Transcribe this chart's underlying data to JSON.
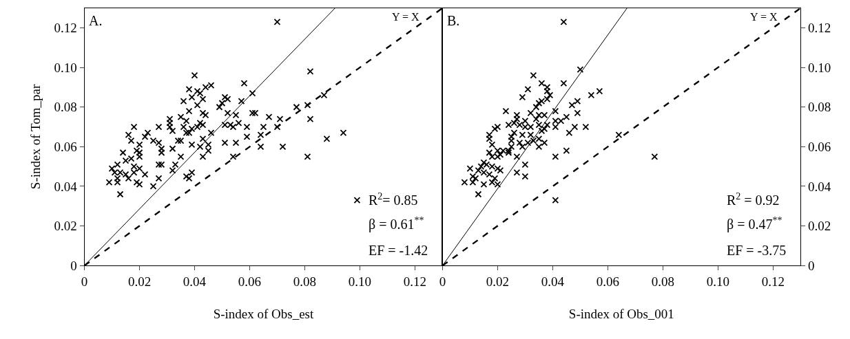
{
  "chart_data": [
    {
      "type": "scatter",
      "xlabel": "S-index of Obs_est",
      "ylabel": "S-index of Tom_par",
      "annotations": [
        "A.",
        "Y = X",
        "R$^{2}$= 0.85",
        "β = 0.61$^{**}$",
        "EF = -1.42"
      ],
      "xlim": [
        0,
        0.13
      ],
      "ylim": [
        0,
        0.13
      ],
      "xticks": [
        0,
        0.02,
        0.04,
        0.06,
        0.08,
        {
          "value": 0.1,
          "label": "0.10"
        },
        0.12
      ],
      "yticks": [
        0,
        0.02,
        0.04,
        0.06,
        0.08,
        {
          "value": 0.1,
          "label": "0.10"
        },
        0.12
      ],
      "grid": false,
      "series": [
        {
          "color": "#000000",
          "marker": "cross",
          "x": [
            0.04,
            0.046,
            0.044,
            0.038,
            0.041,
            0.042,
            0.039,
            0.043,
            0.036,
            0.041,
            0.038,
            0.043,
            0.044,
            0.035,
            0.037,
            0.031,
            0.031,
            0.031,
            0.032,
            0.027,
            0.018,
            0.016,
            0.017,
            0.023,
            0.022,
            0.025,
            0.02,
            0.019,
            0.02,
            0.02,
            0.017,
            0.015,
            0.014,
            0.012,
            0.01,
            0.011,
            0.013,
            0.015,
            0.018,
            0.02,
            0.018,
            0.022,
            0.027,
            0.025,
            0.019,
            0.02,
            0.016,
            0.012,
            0.012,
            0.009,
            0.013,
            0.027,
            0.028,
            0.028,
            0.032,
            0.034,
            0.035,
            0.027,
            0.028,
            0.033,
            0.032,
            0.035,
            0.037,
            0.039,
            0.038,
            0.039,
            0.042,
            0.043,
            0.045,
            0.045,
            0.043,
            0.046,
            0.036,
            0.037,
            0.039,
            0.038,
            0.042,
            0.043,
            0.041,
            0.05,
            0.051,
            0.052,
            0.049,
            0.052,
            0.055,
            0.057,
            0.058,
            0.061,
            0.051,
            0.053,
            0.054,
            0.056,
            0.059,
            0.059,
            0.051,
            0.055,
            0.054,
            0.061,
            0.082,
            0.062,
            0.067,
            0.065,
            0.064,
            0.064,
            0.071,
            0.07,
            0.072,
            0.077,
            0.081,
            0.082,
            0.087,
            0.088,
            0.094,
            0.081,
            0.099,
            0.07
          ],
          "values": [
            0.096,
            0.091,
            0.09,
            0.089,
            0.088,
            0.087,
            0.085,
            0.084,
            0.083,
            0.081,
            0.078,
            0.077,
            0.076,
            0.075,
            0.073,
            0.074,
            0.072,
            0.07,
            0.068,
            0.07,
            0.07,
            0.066,
            0.063,
            0.067,
            0.065,
            0.063,
            0.061,
            0.058,
            0.057,
            0.055,
            0.054,
            0.053,
            0.057,
            0.051,
            0.049,
            0.047,
            0.047,
            0.046,
            0.05,
            0.049,
            0.047,
            0.046,
            0.044,
            0.04,
            0.042,
            0.041,
            0.044,
            0.044,
            0.042,
            0.042,
            0.036,
            0.062,
            0.059,
            0.057,
            0.059,
            0.063,
            0.063,
            0.051,
            0.051,
            0.051,
            0.048,
            0.055,
            0.045,
            0.047,
            0.044,
            0.061,
            0.06,
            0.064,
            0.061,
            0.058,
            0.055,
            0.067,
            0.07,
            0.067,
            0.069,
            0.067,
            0.072,
            0.071,
            0.07,
            0.082,
            0.085,
            0.084,
            0.08,
            0.077,
            0.076,
            0.083,
            0.092,
            0.087,
            0.071,
            0.071,
            0.07,
            0.072,
            0.07,
            0.065,
            0.062,
            0.062,
            0.055,
            0.077,
            0.098,
            0.077,
            0.075,
            0.07,
            0.066,
            0.06,
            0.074,
            0.07,
            0.06,
            0.08,
            0.081,
            0.074,
            0.086,
            0.064,
            0.067,
            0.055,
            0.033,
            0.123
          ]
        },
        {
          "type": "line",
          "color": "#000000",
          "line_style": "solid",
          "x": [
            0,
            0.091
          ],
          "values": [
            0,
            0.13
          ]
        },
        {
          "type": "line",
          "color": "#000000",
          "line_style": "dashed",
          "x": [
            0,
            0.13
          ],
          "values": [
            0,
            0.13
          ]
        }
      ]
    },
    {
      "type": "scatter",
      "xlabel": "S-index of Obs_001",
      "annotations": [
        "B.",
        "Y = X",
        "R$^{2}$ = 0.92",
        "β = 0.47$^{**}$",
        "EF = -3.75"
      ],
      "xlim": [
        0,
        0.13
      ],
      "ylim": [
        0,
        0.13
      ],
      "xticks": [
        0,
        0.02,
        0.04,
        0.06,
        0.08,
        {
          "value": 0.1,
          "label": "0.10"
        },
        0.12
      ],
      "yticks": [
        0,
        0.02,
        0.04,
        0.06,
        0.08,
        {
          "value": 0.1,
          "label": "0.10"
        },
        0.12
      ],
      "grid": false,
      "series": [
        {
          "color": "#000000",
          "marker": "cross",
          "x": [
            0.033,
            0.036,
            0.038,
            0.031,
            0.029,
            0.038,
            0.039,
            0.038,
            0.036,
            0.035,
            0.034,
            0.023,
            0.027,
            0.032,
            0.035,
            0.037,
            0.041,
            0.027,
            0.03,
            0.034,
            0.026,
            0.028,
            0.024,
            0.02,
            0.019,
            0.03,
            0.032,
            0.035,
            0.038,
            0.037,
            0.041,
            0.041,
            0.017,
            0.026,
            0.029,
            0.032,
            0.036,
            0.017,
            0.025,
            0.025,
            0.033,
            0.035,
            0.018,
            0.028,
            0.031,
            0.037,
            0.02,
            0.017,
            0.022,
            0.024,
            0.025,
            0.035,
            0.029,
            0.018,
            0.02,
            0.021,
            0.024,
            0.027,
            0.015,
            0.016,
            0.014,
            0.018,
            0.02,
            0.021,
            0.01,
            0.013,
            0.015,
            0.017,
            0.011,
            0.012,
            0.019,
            0.008,
            0.011,
            0.015,
            0.018,
            0.02,
            0.027,
            0.03,
            0.03,
            0.013,
            0.041,
            0.041,
            0.05,
            0.044,
            0.054,
            0.057,
            0.047,
            0.049,
            0.049,
            0.045,
            0.043,
            0.048,
            0.052,
            0.046,
            0.045,
            0.064,
            0.077,
            0.044
          ],
          "values": [
            0.096,
            0.092,
            0.09,
            0.089,
            0.085,
            0.088,
            0.086,
            0.084,
            0.083,
            0.082,
            0.08,
            0.078,
            0.076,
            0.077,
            0.076,
            0.076,
            0.078,
            0.074,
            0.073,
            0.074,
            0.072,
            0.071,
            0.071,
            0.07,
            0.069,
            0.07,
            0.07,
            0.071,
            0.071,
            0.069,
            0.073,
            0.07,
            0.066,
            0.067,
            0.066,
            0.066,
            0.068,
            0.064,
            0.065,
            0.063,
            0.063,
            0.064,
            0.061,
            0.062,
            0.062,
            0.062,
            0.058,
            0.057,
            0.058,
            0.058,
            0.06,
            0.06,
            0.06,
            0.055,
            0.055,
            0.056,
            0.057,
            0.055,
            0.052,
            0.051,
            0.05,
            0.05,
            0.049,
            0.048,
            0.049,
            0.048,
            0.047,
            0.046,
            0.045,
            0.044,
            0.044,
            0.042,
            0.042,
            0.041,
            0.042,
            0.041,
            0.047,
            0.051,
            0.045,
            0.036,
            0.055,
            0.033,
            0.099,
            0.092,
            0.086,
            0.088,
            0.081,
            0.083,
            0.077,
            0.075,
            0.073,
            0.07,
            0.07,
            0.067,
            0.058,
            0.066,
            0.055,
            0.123
          ]
        },
        {
          "type": "line",
          "color": "#000000",
          "line_style": "solid",
          "x": [
            0,
            0.067
          ],
          "values": [
            0,
            0.13
          ]
        },
        {
          "type": "line",
          "color": "#000000",
          "line_style": "dashed",
          "x": [
            0,
            0.13
          ],
          "values": [
            0,
            0.13
          ]
        }
      ]
    }
  ]
}
